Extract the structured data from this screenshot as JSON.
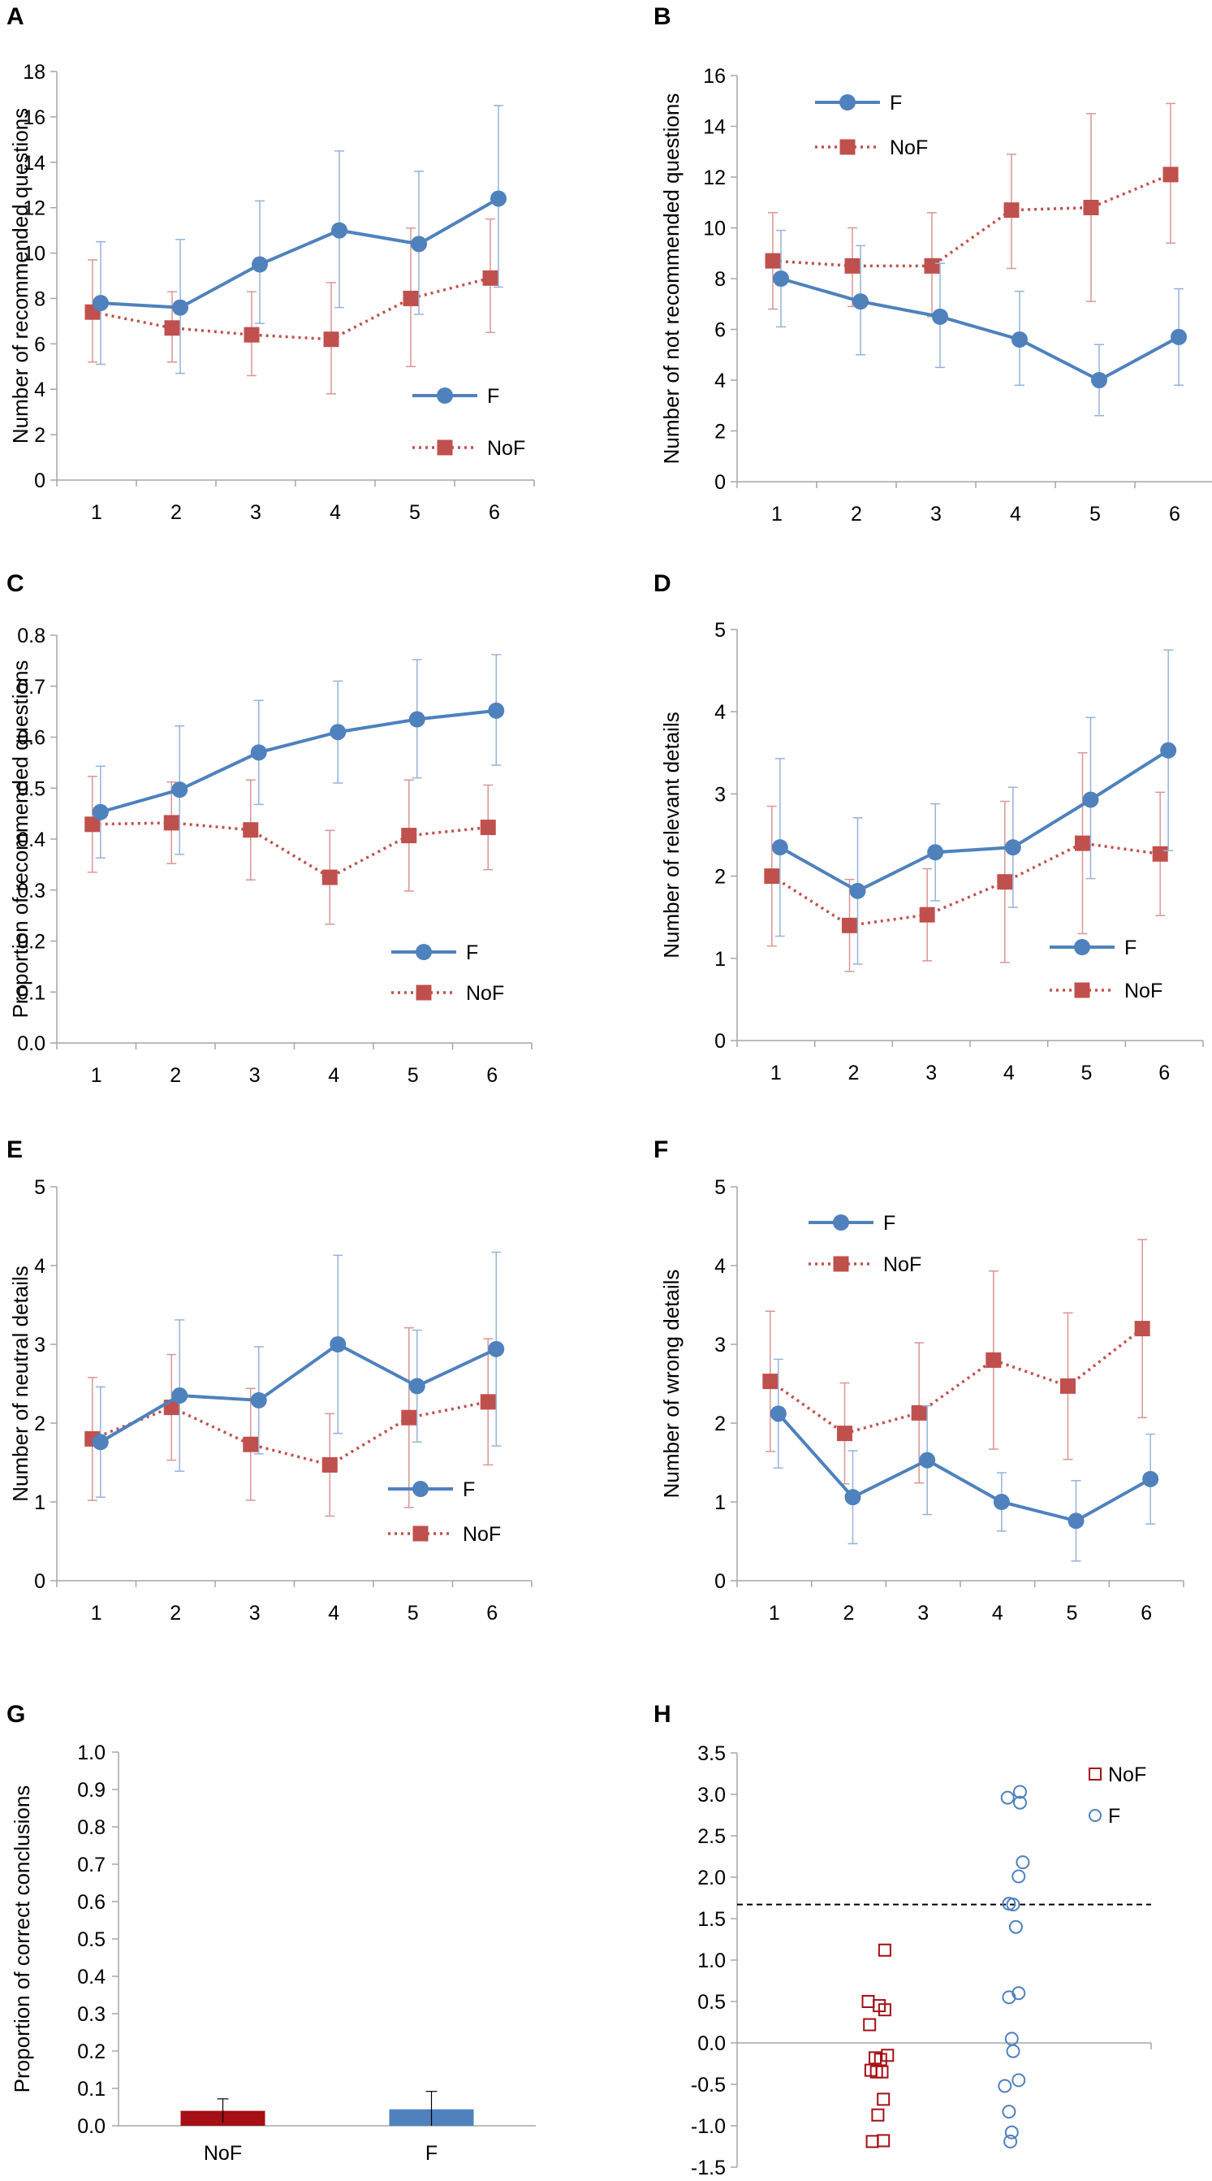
{
  "figure": {
    "legend_f": "F",
    "legend_nof": "NoF"
  },
  "colors": {
    "f": "#4f81bd",
    "nof": "#c0504d",
    "bar_nof": "#a50f15",
    "err_f": "#95b3d7",
    "err_nof": "#d99694",
    "axis": "#a6a6a6"
  },
  "chart_data": [
    {
      "panel": "A",
      "type": "line",
      "ylabel": "Number of recommended questions",
      "categories": [
        "1",
        "2",
        "3",
        "4",
        "5",
        "6"
      ],
      "ylim": [
        0,
        18
      ],
      "yticks": [
        0,
        2,
        4,
        6,
        8,
        10,
        12,
        14,
        16,
        18
      ],
      "ytick_labels": [
        "0",
        "2",
        "4",
        "6",
        "8",
        "10",
        "12",
        "14",
        "16",
        "18"
      ],
      "legend_position": "lower-right",
      "series": [
        {
          "name": "F",
          "values": [
            7.8,
            7.6,
            9.5,
            11.0,
            10.4,
            12.4
          ],
          "err_low": [
            5.1,
            4.7,
            6.9,
            7.6,
            7.3,
            8.5
          ],
          "err_high": [
            10.5,
            10.6,
            12.3,
            14.5,
            13.6,
            16.5
          ]
        },
        {
          "name": "NoF",
          "values": [
            7.4,
            6.7,
            6.4,
            6.2,
            8.0,
            8.9
          ],
          "err_low": [
            5.2,
            5.2,
            4.6,
            3.8,
            5.0,
            6.5
          ],
          "err_high": [
            9.7,
            8.3,
            8.3,
            8.7,
            11.1,
            11.5
          ]
        }
      ]
    },
    {
      "panel": "B",
      "type": "line",
      "ylabel": "Number of not recommended questions",
      "categories": [
        "1",
        "2",
        "3",
        "4",
        "5",
        "6"
      ],
      "ylim": [
        0,
        16
      ],
      "yticks": [
        0,
        2,
        4,
        6,
        8,
        10,
        12,
        14,
        16
      ],
      "ytick_labels": [
        "0",
        "2",
        "4",
        "6",
        "8",
        "10",
        "12",
        "14",
        "16"
      ],
      "legend_position": "top-left",
      "series": [
        {
          "name": "F",
          "values": [
            8.0,
            7.1,
            6.5,
            5.6,
            4.0,
            5.7
          ],
          "err_low": [
            6.1,
            5.0,
            4.5,
            3.8,
            2.6,
            3.8
          ],
          "err_high": [
            9.9,
            9.3,
            8.6,
            7.5,
            5.4,
            7.6
          ]
        },
        {
          "name": "NoF",
          "values": [
            8.7,
            8.5,
            8.5,
            10.7,
            10.8,
            12.1
          ],
          "err_low": [
            6.8,
            6.9,
            6.5,
            8.4,
            7.1,
            9.4
          ],
          "err_high": [
            10.6,
            10.0,
            10.6,
            12.9,
            14.5,
            14.9
          ]
        }
      ]
    },
    {
      "panel": "C",
      "type": "line",
      "ylabel": "Proportion of recommended questions",
      "categories": [
        "1",
        "2",
        "3",
        "4",
        "5",
        "6"
      ],
      "ylim": [
        0,
        0.8
      ],
      "yticks": [
        0,
        0.1,
        0.2,
        0.3,
        0.4,
        0.5,
        0.6,
        0.7,
        0.8
      ],
      "ytick_labels": [
        "0.0",
        "0.1",
        "0.2",
        "0.3",
        "0.4",
        "0.5",
        "0.6",
        "0.7",
        "0.8"
      ],
      "legend_position": "lower-right",
      "series": [
        {
          "name": "F",
          "values": [
            0.453,
            0.497,
            0.57,
            0.61,
            0.635,
            0.652
          ],
          "err_low": [
            0.363,
            0.37,
            0.468,
            0.51,
            0.52,
            0.545
          ],
          "err_high": [
            0.543,
            0.622,
            0.672,
            0.71,
            0.752,
            0.762
          ]
        },
        {
          "name": "NoF",
          "values": [
            0.429,
            0.432,
            0.418,
            0.325,
            0.407,
            0.423
          ],
          "err_low": [
            0.335,
            0.352,
            0.32,
            0.233,
            0.298,
            0.34
          ],
          "err_high": [
            0.523,
            0.512,
            0.516,
            0.417,
            0.516,
            0.506
          ]
        }
      ]
    },
    {
      "panel": "D",
      "type": "line",
      "ylabel": "Number of relevant details",
      "categories": [
        "1",
        "2",
        "3",
        "4",
        "5",
        "6"
      ],
      "ylim": [
        0,
        5
      ],
      "yticks": [
        0,
        1,
        2,
        3,
        4,
        5
      ],
      "ytick_labels": [
        "0",
        "1",
        "2",
        "3",
        "4",
        "5"
      ],
      "legend_position": "lower-right",
      "series": [
        {
          "name": "F",
          "values": [
            2.35,
            1.82,
            2.29,
            2.35,
            2.93,
            3.53
          ],
          "err_low": [
            1.27,
            0.93,
            1.7,
            1.62,
            1.97,
            2.31
          ],
          "err_high": [
            3.43,
            2.71,
            2.88,
            3.08,
            3.93,
            4.75
          ]
        },
        {
          "name": "NoF",
          "values": [
            2.0,
            1.4,
            1.53,
            1.93,
            2.4,
            2.27
          ],
          "err_low": [
            1.15,
            0.84,
            0.97,
            0.95,
            1.3,
            1.52
          ],
          "err_high": [
            2.85,
            1.96,
            2.09,
            2.91,
            3.5,
            3.02
          ]
        }
      ]
    },
    {
      "panel": "E",
      "type": "line",
      "ylabel": "Number of neutral details",
      "categories": [
        "1",
        "2",
        "3",
        "4",
        "5",
        "6"
      ],
      "ylim": [
        0,
        5
      ],
      "yticks": [
        0,
        1,
        2,
        3,
        4,
        5
      ],
      "ytick_labels": [
        "0",
        "1",
        "2",
        "3",
        "4",
        "5"
      ],
      "legend_position": "lower-right",
      "series": [
        {
          "name": "F",
          "values": [
            1.76,
            2.35,
            2.29,
            3.0,
            2.47,
            2.94
          ],
          "err_low": [
            1.06,
            1.39,
            1.61,
            1.87,
            1.76,
            1.71
          ],
          "err_high": [
            2.46,
            3.31,
            2.97,
            4.13,
            3.18,
            4.17
          ]
        },
        {
          "name": "NoF",
          "values": [
            1.8,
            2.2,
            1.73,
            1.47,
            2.07,
            2.27
          ],
          "err_low": [
            1.02,
            1.53,
            1.02,
            0.82,
            0.93,
            1.47
          ],
          "err_high": [
            2.58,
            2.87,
            2.44,
            2.12,
            3.21,
            3.07
          ]
        }
      ]
    },
    {
      "panel": "F",
      "type": "line",
      "ylabel": "Number of wrong details",
      "categories": [
        "1",
        "2",
        "3",
        "4",
        "5",
        "6"
      ],
      "ylim": [
        0,
        5
      ],
      "yticks": [
        0,
        1,
        2,
        3,
        4,
        5
      ],
      "ytick_labels": [
        "0",
        "1",
        "2",
        "3",
        "4",
        "5"
      ],
      "legend_position": "top-left",
      "series": [
        {
          "name": "F",
          "values": [
            2.12,
            1.06,
            1.53,
            1.0,
            0.76,
            1.29
          ],
          "err_low": [
            1.43,
            0.47,
            0.84,
            0.63,
            0.25,
            0.72
          ],
          "err_high": [
            2.81,
            1.65,
            2.22,
            1.37,
            1.27,
            1.86
          ]
        },
        {
          "name": "NoF",
          "values": [
            2.53,
            1.87,
            2.13,
            2.8,
            2.47,
            3.2
          ],
          "err_low": [
            1.64,
            1.23,
            1.24,
            1.67,
            1.54,
            2.07
          ],
          "err_high": [
            3.42,
            2.51,
            3.02,
            3.93,
            3.4,
            4.33
          ]
        }
      ]
    },
    {
      "panel": "G",
      "type": "bar",
      "ylabel": "Proportion of correct conclusions",
      "categories": [
        "NoF",
        "F"
      ],
      "values": [
        0.04,
        0.044
      ],
      "err_high": [
        0.072,
        0.092
      ],
      "err_low": [
        0.008,
        0.0
      ],
      "ylim": [
        0,
        1.0
      ],
      "yticks": [
        0,
        0.1,
        0.2,
        0.3,
        0.4,
        0.5,
        0.6,
        0.7,
        0.8,
        0.9,
        1.0
      ],
      "ytick_labels": [
        "0.0",
        "0.1",
        "0.2",
        "0.3",
        "0.4",
        "0.5",
        "0.6",
        "0.7",
        "0.8",
        "0.9",
        "1.0"
      ]
    },
    {
      "panel": "H",
      "type": "scatter",
      "ylabel": "",
      "ylim": [
        -1.5,
        3.5
      ],
      "yticks": [
        -1.5,
        -1.0,
        -0.5,
        0,
        0.5,
        1.0,
        1.5,
        2.0,
        2.5,
        3.0,
        3.5
      ],
      "ytick_labels": [
        "-1.5",
        "-1.0",
        "-0.5",
        "0.0",
        "0.5",
        "1.0",
        "1.5",
        "2.0",
        "2.5",
        "3.0",
        "3.5"
      ],
      "threshold": 1.67,
      "legend_position": "top-right",
      "series": [
        {
          "name": "NoF",
          "marker": "square",
          "x": [
            1.07,
            0.95,
            1.03,
            1.07,
            0.96,
            1.09,
            1.0,
            1.04,
            0.97,
            1.05,
            1.01,
            1.06,
            1.02,
            0.98,
            1.06
          ],
          "y": [
            1.12,
            0.5,
            0.45,
            0.4,
            0.22,
            -0.15,
            -0.18,
            -0.2,
            -0.33,
            -0.35,
            -0.35,
            -0.68,
            -0.87,
            -1.19,
            -1.18
          ]
        },
        {
          "name": "F",
          "marker": "circle",
          "x": [
            1.96,
            2.05,
            2.05,
            2.07,
            2.04,
            1.97,
            2.0,
            2.02,
            1.97,
            2.04,
            1.99,
            2.0,
            2.04,
            1.94,
            1.97,
            1.99,
            1.98
          ],
          "y": [
            2.96,
            3.03,
            2.9,
            2.18,
            2.01,
            1.68,
            1.67,
            1.4,
            0.55,
            0.6,
            0.05,
            -0.1,
            -0.45,
            -0.52,
            -0.83,
            -1.08,
            -1.19
          ]
        }
      ]
    }
  ]
}
